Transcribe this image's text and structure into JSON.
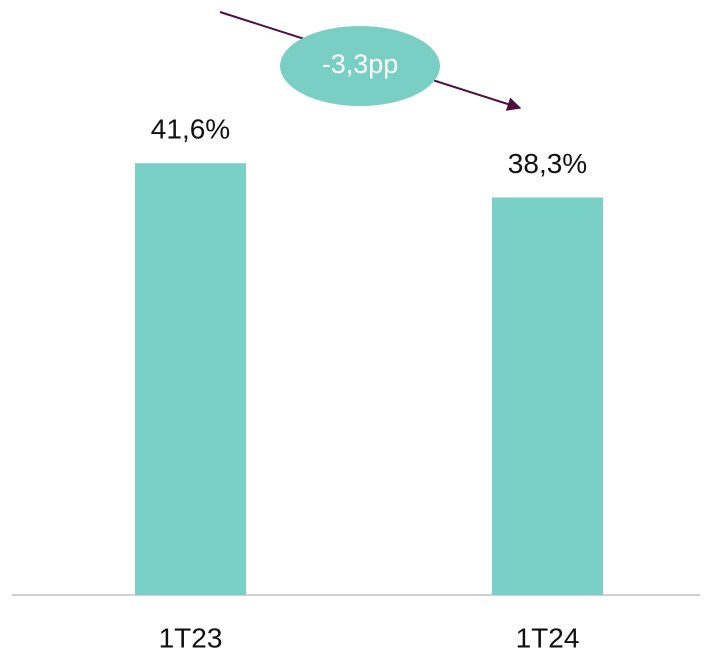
{
  "chart_data": {
    "type": "bar",
    "categories": [
      "1T23",
      "1T24"
    ],
    "values": [
      41.6,
      38.3
    ],
    "value_labels": [
      "41,6%",
      "38,3%"
    ],
    "color": "#79d0c6",
    "ylim": [
      0,
      50
    ],
    "annotation": "-3,3pp"
  }
}
